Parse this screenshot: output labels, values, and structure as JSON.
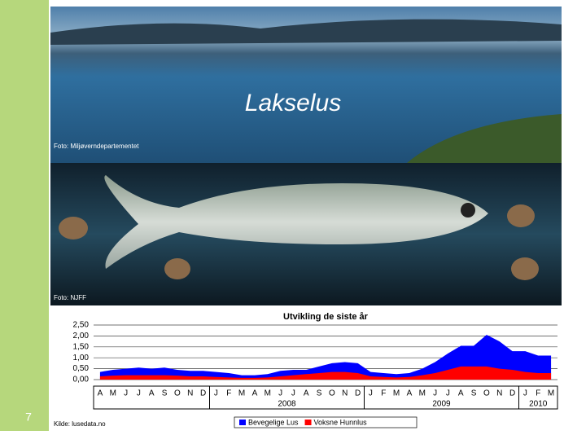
{
  "slide": {
    "number": "7",
    "source": "Kilde: lusedata.no",
    "photos": [
      {
        "title": "Lakselus",
        "credit": "Foto: Miljøverndepartementet"
      },
      {
        "credit": "Foto: NJFF"
      }
    ]
  },
  "chart_data": {
    "type": "area",
    "title": "Utvikling de siste år",
    "categories": [
      "A",
      "M",
      "J",
      "J",
      "A",
      "S",
      "O",
      "N",
      "D",
      "J",
      "F",
      "M",
      "A",
      "M",
      "J",
      "J",
      "A",
      "S",
      "O",
      "N",
      "D",
      "J",
      "F",
      "M",
      "A",
      "M",
      "J",
      "J",
      "A",
      "S",
      "O",
      "N",
      "D",
      "J",
      "F",
      "M"
    ],
    "year_groups": [
      {
        "label": "2008",
        "start": 9,
        "end": 20
      },
      {
        "label": "2009",
        "start": 21,
        "end": 32
      },
      {
        "label": "2010",
        "start": 33,
        "end": 35
      }
    ],
    "series": [
      {
        "name": "Bevegelige Lus",
        "color": "#0000ff",
        "values": [
          0.35,
          0.45,
          0.5,
          0.55,
          0.5,
          0.55,
          0.45,
          0.4,
          0.4,
          0.35,
          0.3,
          0.2,
          0.2,
          0.25,
          0.4,
          0.45,
          0.45,
          0.6,
          0.75,
          0.8,
          0.75,
          0.35,
          0.3,
          0.25,
          0.3,
          0.5,
          0.8,
          1.2,
          1.55,
          1.55,
          2.05,
          1.75,
          1.3,
          1.3,
          1.1,
          1.1
        ]
      },
      {
        "name": "Voksne Hunnlus",
        "color": "#ff0000",
        "values": [
          0.15,
          0.18,
          0.2,
          0.2,
          0.2,
          0.2,
          0.18,
          0.15,
          0.15,
          0.12,
          0.1,
          0.08,
          0.08,
          0.1,
          0.15,
          0.2,
          0.25,
          0.3,
          0.35,
          0.35,
          0.3,
          0.15,
          0.12,
          0.1,
          0.12,
          0.2,
          0.3,
          0.45,
          0.6,
          0.6,
          0.6,
          0.5,
          0.45,
          0.35,
          0.3,
          0.3
        ]
      }
    ],
    "ylim": [
      0,
      2.5
    ],
    "yticks": [
      {
        "value": 0,
        "label": "0,00"
      },
      {
        "value": 0.5,
        "label": "0,50"
      },
      {
        "value": 1,
        "label": "1,00"
      },
      {
        "value": 1.5,
        "label": "1,50"
      },
      {
        "value": 2,
        "label": "2,00"
      },
      {
        "value": 2.5,
        "label": "2,50"
      }
    ],
    "grid": true
  }
}
